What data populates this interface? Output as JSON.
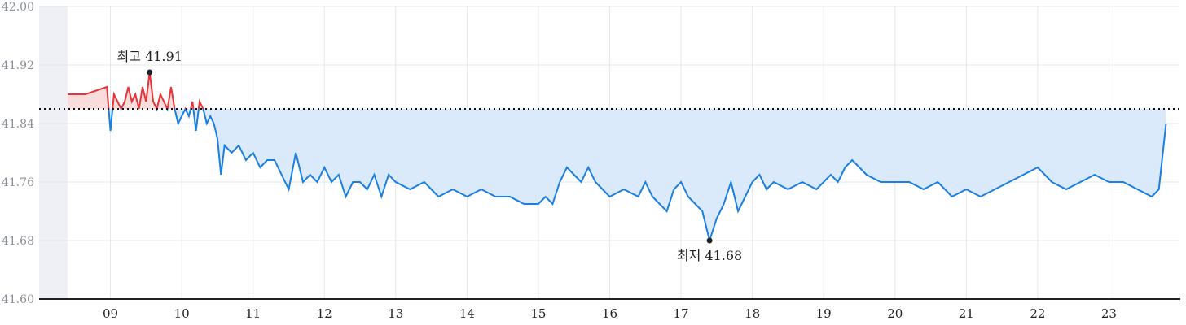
{
  "chart_data": {
    "type": "area",
    "title": "",
    "xlabel": "",
    "ylabel": "",
    "x_ticks": [
      "09",
      "10",
      "11",
      "12",
      "13",
      "14",
      "15",
      "16",
      "17",
      "18",
      "19",
      "20",
      "21",
      "22",
      "23"
    ],
    "y_ticks": [
      "41.60",
      "41.68",
      "41.76",
      "41.84",
      "41.92",
      "42.00"
    ],
    "ylim": [
      41.6,
      42.0
    ],
    "xlim": [
      8.0,
      24.0
    ],
    "baseline": 41.86,
    "colors": {
      "above": "#e8333a",
      "above_fill": "#f9dcdc",
      "below": "#1a7fe0",
      "below_fill": "#dbeafb",
      "pre_session": "#eef0f6",
      "grid": "#e6e7ea"
    },
    "high": {
      "label": "최고 41.91",
      "x": 9.55,
      "y": 41.91
    },
    "low": {
      "label": "최저 41.68",
      "x": 17.4,
      "y": 41.68
    },
    "series": [
      {
        "x": [
          8.4,
          8.65,
          8.95,
          9.0,
          9.05,
          9.1,
          9.15,
          9.2,
          9.25,
          9.3,
          9.35,
          9.4,
          9.45,
          9.5,
          9.55,
          9.6,
          9.65,
          9.7,
          9.75,
          9.8,
          9.85,
          9.9,
          9.95,
          10.0,
          10.05,
          10.1,
          10.15,
          10.2,
          10.25,
          10.3,
          10.35,
          10.4,
          10.45,
          10.5,
          10.55,
          10.6,
          10.7,
          10.8,
          10.9,
          11.0,
          11.1,
          11.2,
          11.3,
          11.4,
          11.5,
          11.6,
          11.7,
          11.8,
          11.9,
          12.0,
          12.1,
          12.2,
          12.3,
          12.4,
          12.5,
          12.6,
          12.7,
          12.8,
          12.9,
          13.0,
          13.2,
          13.4,
          13.6,
          13.8,
          14.0,
          14.2,
          14.4,
          14.6,
          14.8,
          15.0,
          15.1,
          15.2,
          15.3,
          15.4,
          15.5,
          15.6,
          15.7,
          15.8,
          15.9,
          16.0,
          16.2,
          16.4,
          16.5,
          16.6,
          16.7,
          16.8,
          16.9,
          17.0,
          17.1,
          17.2,
          17.3,
          17.4,
          17.5,
          17.6,
          17.7,
          17.8,
          17.9,
          18.0,
          18.1,
          18.2,
          18.3,
          18.5,
          18.7,
          18.9,
          19.1,
          19.2,
          19.3,
          19.4,
          19.5,
          19.6,
          19.8,
          20.0,
          20.2,
          20.4,
          20.6,
          20.8,
          21.0,
          21.2,
          21.4,
          21.6,
          21.8,
          22.0,
          22.2,
          22.4,
          22.6,
          22.8,
          23.0,
          23.2,
          23.4,
          23.6,
          23.7,
          23.8
        ],
        "y": [
          41.88,
          41.88,
          41.89,
          41.83,
          41.88,
          41.87,
          41.86,
          41.87,
          41.89,
          41.87,
          41.88,
          41.86,
          41.89,
          41.87,
          41.91,
          41.87,
          41.86,
          41.88,
          41.87,
          41.86,
          41.89,
          41.86,
          41.84,
          41.85,
          41.86,
          41.85,
          41.87,
          41.83,
          41.87,
          41.86,
          41.84,
          41.85,
          41.84,
          41.82,
          41.77,
          41.81,
          41.8,
          41.81,
          41.79,
          41.8,
          41.78,
          41.79,
          41.79,
          41.77,
          41.75,
          41.8,
          41.76,
          41.77,
          41.76,
          41.78,
          41.76,
          41.77,
          41.74,
          41.76,
          41.76,
          41.75,
          41.77,
          41.74,
          41.77,
          41.76,
          41.75,
          41.76,
          41.74,
          41.75,
          41.74,
          41.75,
          41.74,
          41.74,
          41.73,
          41.73,
          41.74,
          41.73,
          41.76,
          41.78,
          41.77,
          41.76,
          41.78,
          41.76,
          41.75,
          41.74,
          41.75,
          41.74,
          41.76,
          41.74,
          41.73,
          41.72,
          41.75,
          41.76,
          41.74,
          41.73,
          41.72,
          41.68,
          41.71,
          41.73,
          41.76,
          41.72,
          41.74,
          41.76,
          41.77,
          41.75,
          41.76,
          41.75,
          41.76,
          41.75,
          41.77,
          41.76,
          41.78,
          41.79,
          41.78,
          41.77,
          41.76,
          41.76,
          41.76,
          41.75,
          41.76,
          41.74,
          41.75,
          41.74,
          41.75,
          41.76,
          41.77,
          41.78,
          41.76,
          41.75,
          41.76,
          41.77,
          41.76,
          41.76,
          41.75,
          41.74,
          41.75,
          41.84
        ]
      }
    ]
  }
}
